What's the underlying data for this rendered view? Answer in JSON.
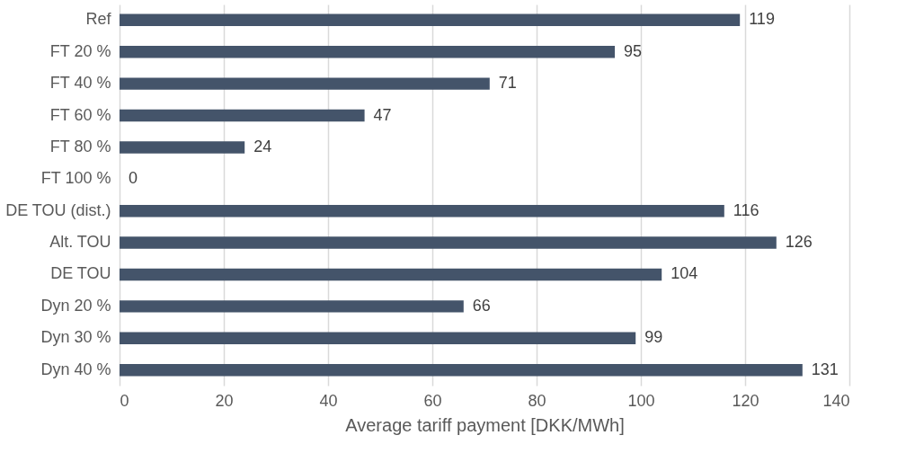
{
  "chart_data": {
    "type": "bar",
    "orientation": "horizontal",
    "xlabel": "Average tariff payment [DKK/MWh]",
    "categories": [
      "Ref",
      "FT 20 %",
      "FT 40 %",
      "FT 60 %",
      "FT 80 %",
      "FT 100 %",
      "DE TOU (dist.)",
      "Alt. TOU",
      "DE TOU",
      "Dyn 20 %",
      "Dyn 30 %",
      "Dyn 40 %"
    ],
    "values": [
      119,
      95,
      71,
      47,
      24,
      0,
      116,
      126,
      104,
      66,
      99,
      131
    ],
    "color": "#44546a",
    "xlim": [
      0,
      140
    ],
    "xticks": [
      0,
      20,
      40,
      60,
      80,
      100,
      120,
      140
    ],
    "grid": "x",
    "data_labels": true
  }
}
